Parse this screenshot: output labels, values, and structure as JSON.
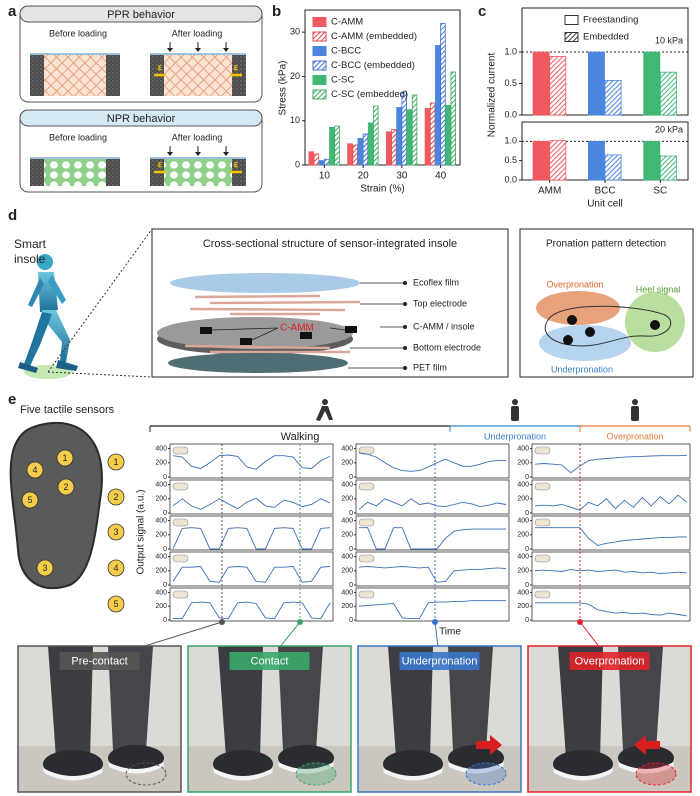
{
  "panel_labels": [
    "a",
    "b",
    "c",
    "d",
    "e"
  ],
  "panel_a": {
    "boxes": [
      {
        "title": "PPR behavior",
        "before": "Before loading",
        "after": "After loading"
      },
      {
        "title": "NPR behavior",
        "before": "Before loading",
        "after": "After loading"
      }
    ],
    "strain_symbol": "ε"
  },
  "chart_data": [
    {
      "type": "bar",
      "ylabel": "Stress (kPa)",
      "xlabel": "Strain (%)",
      "categories": [
        "10",
        "20",
        "30",
        "40"
      ],
      "ylim": [
        0,
        35
      ],
      "yticks": [
        0,
        10,
        20,
        30
      ],
      "series": [
        {
          "name": "C-AMM",
          "color": "#ee5a5f",
          "hatched": false,
          "values": [
            3,
            4.8,
            7.5,
            12.8
          ]
        },
        {
          "name": "C-AMM (embedded)",
          "color": "#d94a4f",
          "hatched": true,
          "values": [
            2.5,
            4.5,
            8,
            14
          ]
        },
        {
          "name": "C-BCC",
          "color": "#4a86e0",
          "hatched": false,
          "values": [
            1,
            6,
            13,
            27
          ]
        },
        {
          "name": "C-BCC (embedded)",
          "color": "#3f6fd0",
          "hatched": true,
          "values": [
            1.3,
            7,
            16.5,
            32
          ]
        },
        {
          "name": "C-SC",
          "color": "#3fb874",
          "hatched": false,
          "values": [
            8.5,
            9.5,
            12.5,
            13.5
          ]
        },
        {
          "name": "C-SC (embedded)",
          "color": "#3aa860",
          "hatched": true,
          "values": [
            8.8,
            13.3,
            15.8,
            21
          ]
        }
      ]
    },
    {
      "type": "bar",
      "ylabel": "Normalized current",
      "annotation": "10 kPa",
      "category_colors": [
        "#ee5a5f",
        "#4a86e0",
        "#3fb874"
      ],
      "ylim": [
        0,
        1.7
      ],
      "yticks": [
        {
          "value": 0,
          "label": "0.0"
        },
        {
          "value": 0.5,
          "label": "0.5"
        },
        {
          "value": 1,
          "label": "1.0"
        }
      ],
      "ref_line": 1,
      "series": [
        {
          "name": "Freestanding",
          "hatched": false,
          "values": [
            1,
            1,
            1
          ]
        },
        {
          "name": "Embedded",
          "hatched": true,
          "values": [
            0.93,
            0.55,
            0.68
          ]
        }
      ]
    },
    {
      "type": "bar",
      "xlabel": "Unit cell",
      "annotation": "20 kPa",
      "categories": [
        "AMM",
        "BCC",
        "SC"
      ],
      "category_colors": [
        "#ee5a5f",
        "#4a86e0",
        "#3fb874"
      ],
      "ylim": [
        0,
        1.5
      ],
      "yticks": [
        {
          "value": 0,
          "label": "0.0"
        },
        {
          "value": 0.5,
          "label": "0.5"
        },
        {
          "value": 1,
          "label": "1.0"
        }
      ],
      "ref_line": 1,
      "series": [
        {
          "hatched": false,
          "values": [
            1,
            1,
            1
          ]
        },
        {
          "hatched": true,
          "values": [
            1.02,
            0.65,
            0.62
          ]
        }
      ]
    },
    {
      "type": "line",
      "ylabel": "Output signal (a.u.)",
      "xlabel": "Time",
      "color": "#3a6fb5",
      "ylim": [
        0,
        450
      ],
      "yticks": [
        0,
        200,
        400
      ],
      "series": [
        {
          "values": [
            300,
            280,
            150,
            120,
            200,
            300,
            310,
            290,
            140,
            110,
            220,
            300,
            300,
            280,
            130,
            120,
            230,
            290
          ]
        },
        {
          "values": [
            340,
            320,
            280,
            200,
            130,
            90,
            80,
            90,
            140,
            200,
            250,
            200,
            150,
            150,
            180,
            220,
            230,
            230
          ]
        },
        {
          "values": [
            180,
            190,
            180,
            170,
            60,
            150,
            230,
            250,
            260,
            270,
            280,
            285,
            290,
            295,
            300,
            300,
            300,
            305
          ]
        },
        {
          "values": [
            100,
            200,
            100,
            50,
            120,
            200,
            130,
            60,
            150,
            210,
            100,
            80,
            180,
            150,
            90,
            120,
            200,
            140
          ]
        },
        {
          "values": [
            50,
            150,
            100,
            200,
            150,
            100,
            200,
            120,
            140,
            100,
            90,
            120,
            150,
            130,
            90,
            110,
            140,
            120
          ]
        },
        {
          "values": [
            100,
            110,
            100,
            120,
            80,
            40,
            150,
            100,
            200,
            60,
            180,
            80,
            220,
            100,
            230,
            130,
            250,
            150
          ]
        },
        {
          "values": [
            0,
            290,
            300,
            290,
            0,
            0,
            290,
            300,
            290,
            0,
            0,
            290,
            300,
            290,
            0,
            0,
            290,
            300
          ]
        },
        {
          "values": [
            300,
            300,
            0,
            0,
            300,
            300,
            0,
            0,
            0,
            0,
            150,
            250,
            270,
            280,
            280,
            280,
            280,
            280
          ]
        },
        {
          "values": [
            300,
            300,
            300,
            300,
            300,
            300,
            150,
            50,
            80,
            100,
            120,
            130,
            140,
            150,
            160,
            160,
            170,
            170
          ]
        },
        {
          "values": [
            50,
            250,
            250,
            260,
            50,
            40,
            250,
            260,
            250,
            50,
            40,
            250,
            250,
            260,
            40,
            50,
            250,
            260
          ]
        },
        {
          "values": [
            250,
            260,
            250,
            240,
            250,
            260,
            250,
            240,
            250,
            40,
            50,
            200,
            210,
            220,
            220,
            230,
            240,
            230
          ]
        },
        {
          "values": [
            200,
            210,
            200,
            190,
            220,
            200,
            210,
            190,
            200,
            210,
            180,
            190,
            170,
            180,
            160,
            170,
            180,
            170
          ]
        },
        {
          "values": [
            20,
            20,
            250,
            260,
            250,
            30,
            20,
            250,
            260,
            240,
            30,
            20,
            250,
            260,
            250,
            30,
            20,
            250
          ]
        },
        {
          "values": [
            200,
            210,
            220,
            230,
            240,
            30,
            20,
            20,
            250,
            260,
            260,
            270,
            270,
            280,
            280,
            280,
            280,
            280
          ]
        },
        {
          "values": [
            250,
            250,
            250,
            250,
            250,
            250,
            230,
            150,
            120,
            100,
            110,
            90,
            100,
            80,
            70,
            100,
            80,
            60
          ]
        }
      ]
    }
  ],
  "panel_d": {
    "smart_insole": [
      "Smart",
      "insole"
    ],
    "cross_section_title": "Cross-sectional structure of sensor-integrated insole",
    "layers": [
      "Ecoflex film",
      "Top electrode",
      "C-AMM / insole",
      "Bottom electrode",
      "PET film"
    ],
    "sensor_label": "C-AMM",
    "pronation_title": "Pronation pattern detection",
    "regions": [
      "Overpronation",
      "Heel signal",
      "Underpronation"
    ]
  },
  "panel_e": {
    "title": "Five tactile sensors",
    "sensor_numbers": [
      "1",
      "2",
      "3",
      "4",
      "5"
    ],
    "phases": [
      "Walking",
      "Underpronation",
      "Overpronation"
    ],
    "photos": [
      "Pre-contact",
      "Contact",
      "Underpronation",
      "Overpronation"
    ]
  }
}
